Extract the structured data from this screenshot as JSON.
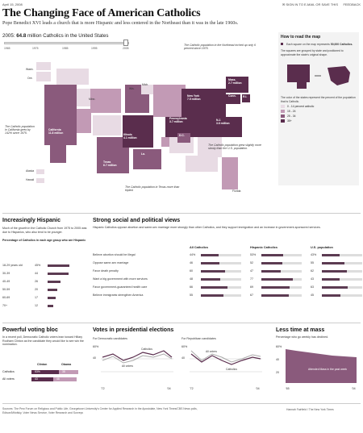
{
  "topbar": {
    "date": "April 15, 2008",
    "sign_in": "SIGN IN TO E-MAIL OR SAVE THIS",
    "feedback": "FEEDBACK"
  },
  "header": {
    "title": "The Changing Face of American Catholics",
    "subtitle": "Pope Benedict XVI leads a church that is more Hispanic and less centered in the Northeast than it was in the late 1960s."
  },
  "year_display": {
    "year": "2005:",
    "count": "64.8",
    "suffix": "million Catholics in the United States"
  },
  "slider": {
    "ticks": [
      "1965",
      "1975",
      "1985",
      "1995",
      "2005"
    ],
    "position": 1.0
  },
  "map": {
    "labels": {
      "wash": "Wash.",
      "ore": "Ore.",
      "minn": "Minn.",
      "wis": "Wis.",
      "mich": "Mich.",
      "calif": "California\n11.8 million",
      "ariz": "Ariz.",
      "ill": "Illinois\n4.1 million",
      "texas": "Texas\n6.7 million",
      "la": "La.",
      "fla": "Fla.",
      "ny": "New York\n7.5 million",
      "mass": "Mass.\n2.7 million",
      "pa": "Pennsylvania\n3.7 million",
      "nj": "N.J.\n3.6 million",
      "conn": "Conn.",
      "ri": "R.I.",
      "dc": "D.C.",
      "alaska": "Alaska",
      "hawaii": "Hawaii",
      "florida": "Florida"
    },
    "notes": {
      "northeast": "The Catholic population in the Northeast inched up only 6 percent since 1975.",
      "california": "The Catholic population in California grew by 142% since 1975.",
      "south": "The Catholic population grew slightly more slowly than the U.S. population.",
      "texas": "The Catholic population in Texas more than tripled."
    }
  },
  "howto": {
    "title": "How to read the map",
    "square_text": "Each square on the map represents",
    "square_bold": "50,000 Catholics.",
    "grouped_text": "The squares are grouped by state and positioned to approximate the state's original shape.",
    "color_text": "The color of the states represent the percent of the population that is Catholic.",
    "legend": [
      {
        "label": "0 - 14 percent catholic",
        "color": "#e8dbe4"
      },
      {
        "label": "15 - 24",
        "color": "#c29ab5"
      },
      {
        "label": "25 - 34",
        "color": "#8a5a7c"
      },
      {
        "label": "35+",
        "color": "#5a2d4d"
      }
    ]
  },
  "hispanic": {
    "title": "Increasingly Hispanic",
    "body": "Much of the growth in the Catholic Church from 1975 to 2005 was due to Hispanics, who also tend to be younger.",
    "table_title": "Percentage of Catholics in each age group who are Hispanic",
    "rows": [
      {
        "label": "18-29 years old",
        "value": "45%",
        "pct": 45
      },
      {
        "label": "30-39",
        "value": "44",
        "pct": 44
      },
      {
        "label": "40-49",
        "value": "26",
        "pct": 26
      },
      {
        "label": "50-59",
        "value": "20",
        "pct": 20
      },
      {
        "label": "60-69",
        "value": "17",
        "pct": 17
      },
      {
        "label": "70+",
        "value": "12",
        "pct": 12
      }
    ]
  },
  "views": {
    "title": "Strong social and political views",
    "body": "Hispanic Catholics oppose abortion and same-sex marriage more strongly than other Catholics, and they support immigration and an increase in government-sponsored services.",
    "columns": [
      "All Catholics",
      "Hispanic Catholics",
      "U.S. population"
    ],
    "rows": [
      {
        "label": "Believe abortion should be illegal",
        "values": [
          "44%",
          "53%",
          "43%"
        ],
        "pcts": [
          44,
          53,
          43
        ]
      },
      {
        "label": "Oppose same-sex marriage",
        "values": [
          "46",
          "52",
          "55"
        ],
        "pcts": [
          46,
          52,
          55
        ]
      },
      {
        "label": "Favor death penalty",
        "values": [
          "60",
          "47",
          "62"
        ],
        "pcts": [
          60,
          47,
          62
        ]
      },
      {
        "label": "Want a big government with more services",
        "values": [
          "48",
          "77",
          "43"
        ],
        "pcts": [
          48,
          77,
          43
        ]
      },
      {
        "label": "Favor government-guaranteed health care",
        "values": [
          "66",
          "69",
          "63"
        ],
        "pcts": [
          66,
          69,
          63
        ]
      },
      {
        "label": "Believe immigrants strengthen America",
        "values": [
          "55",
          "67",
          "45"
        ],
        "pcts": [
          55,
          67,
          45
        ]
      }
    ]
  },
  "voting": {
    "title": "Powerful voting bloc",
    "body": "In a recent poll, Democratic Catholic voters lean toward Hillary Rodham Clinton as the candidate they would like to see win the nomination.",
    "cols": [
      "Clinton",
      "Obama"
    ],
    "rows": [
      {
        "label": "Catholics",
        "clinton": "53%",
        "obama": "38",
        "c": 53,
        "o": 38
      },
      {
        "label": "All voters",
        "clinton": "43",
        "obama": "46",
        "c": 43,
        "o": 46
      }
    ]
  },
  "elections": {
    "title": "Votes in presidential elections",
    "dem_label": "For Democratic candidates",
    "rep_label": "For Republican candidates",
    "y_top": "60%",
    "y_mid": "40",
    "y_bot": "20",
    "x_start": "'72",
    "x_end": "'04",
    "series_cath": "Catholics",
    "series_all": "All voters"
  },
  "mass": {
    "title": "Less time at mass",
    "body": "Percentage who go weekly has declined.",
    "y_top": "60%",
    "y_mid": "40",
    "y_bot": "20",
    "x_start": "'65",
    "x_end": "'04",
    "area_label": "Attended Mass in the past week"
  },
  "footer": {
    "sources": "Sources: The Pew Forum on Religious and Public Life, Georgetown University's Center for Applied Research in the Apostolate, New York Times/CBS News polls, Edison/Mitofsky, Voter News Service, Voter Research and Surveys",
    "credit": "Hannah Fairfield / The New York Times"
  },
  "colors": {
    "dark": "#5a2d4d",
    "mid": "#8a5a7c",
    "light": "#c29ab5",
    "pale": "#e8dbe4"
  }
}
